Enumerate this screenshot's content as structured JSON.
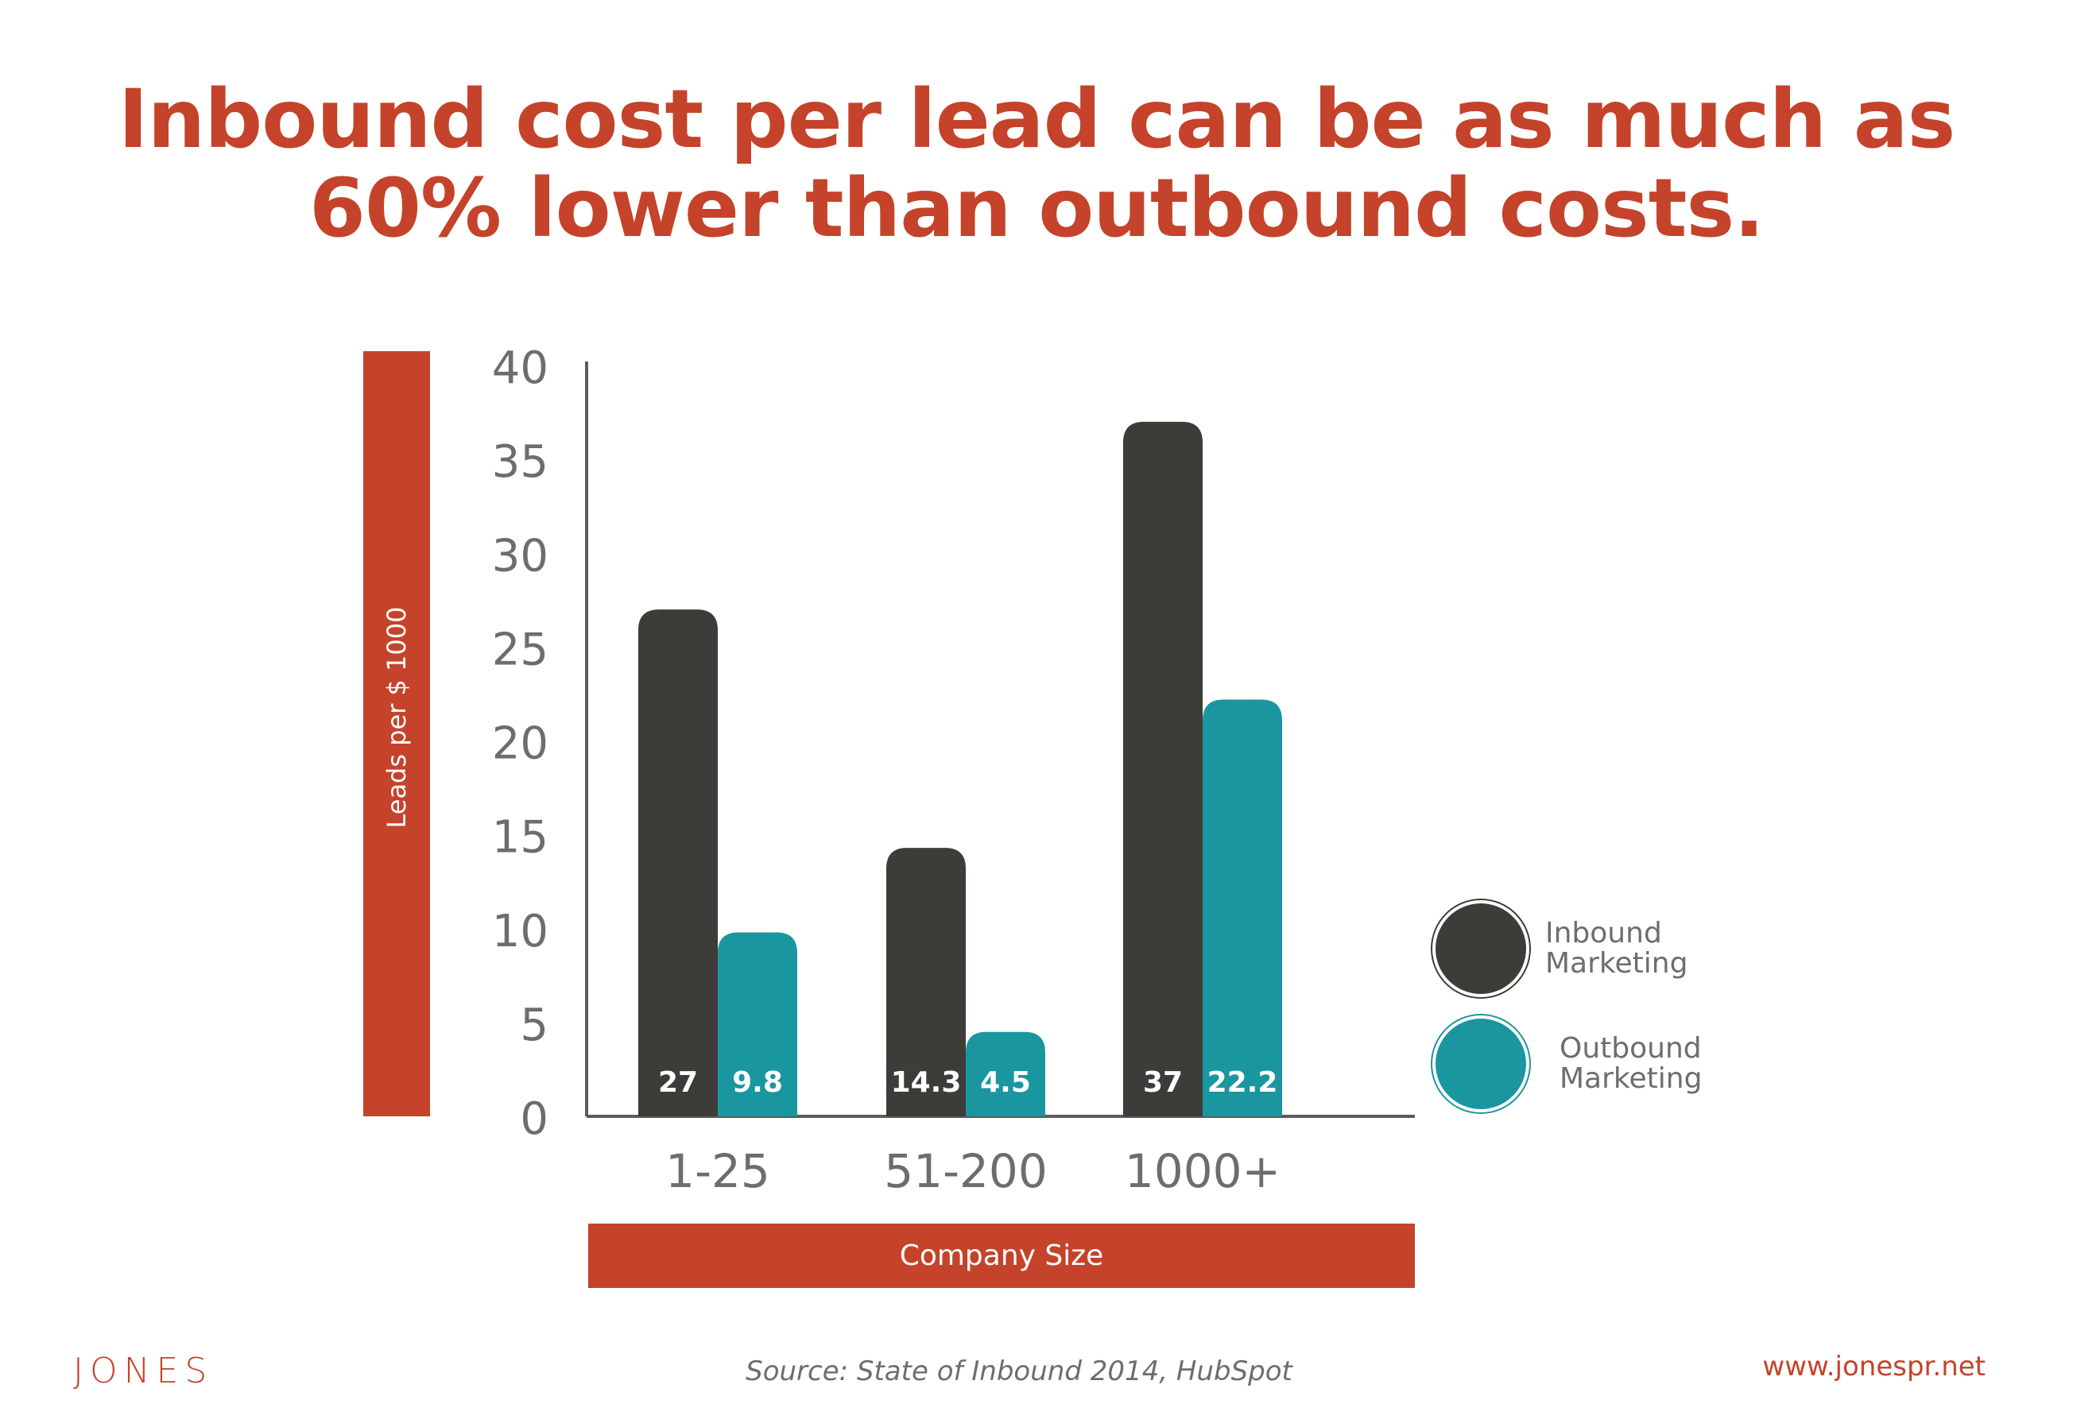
{
  "headline": {
    "line1": "Inbound cost per lead can be as much as",
    "line2": "60% lower than outbound costs."
  },
  "chart_data": {
    "type": "bar",
    "xlabel": "Company Size",
    "ylabel": "Leads per $ 1000",
    "ylim": [
      0,
      40
    ],
    "yticks": [
      0,
      5,
      10,
      15,
      20,
      25,
      30,
      35,
      40
    ],
    "categories": [
      "1-25",
      "51-200",
      "1000+"
    ],
    "series": [
      {
        "name": "Inbound Marketing",
        "color": "#3d3c39",
        "values": [
          27,
          14.3,
          37
        ],
        "labels": [
          "27",
          "14.3",
          "37"
        ]
      },
      {
        "name": "Outbound Marketing",
        "color": "#1a96a0",
        "values": [
          9.8,
          4.5,
          22.2
        ],
        "labels": [
          "9.8",
          "4.5",
          "22.2"
        ]
      }
    ],
    "legend": [
      {
        "line1": "Inbound",
        "line2": "Marketing"
      },
      {
        "line1": "Outbound",
        "line2": "Marketing"
      }
    ],
    "grid": false,
    "legend_position": "right",
    "axis_color": "#5b5b5b",
    "tick_color": "#6d6d6d"
  },
  "footer": {
    "logo": "JONES",
    "source": "Source: State of Inbound 2014, HubSpot",
    "website": "www.jonespr.net"
  },
  "colors": {
    "accent": "#c4432a",
    "inbound": "#3d3c39",
    "outbound": "#1a96a0"
  }
}
